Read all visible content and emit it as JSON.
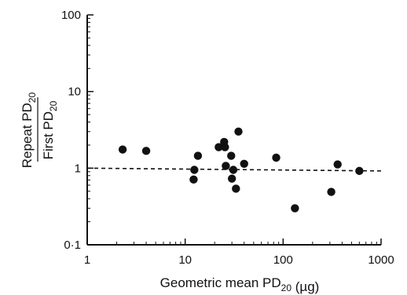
{
  "chart_data": {
    "type": "scatter",
    "title": "",
    "xlabel": "Geometric mean PD20 (µg)",
    "ylabel_top": "Repeat PD20",
    "ylabel_bottom": "First PD20",
    "x_scale": "log",
    "y_scale": "log",
    "xlim": [
      1,
      1000
    ],
    "ylim": [
      0.1,
      100
    ],
    "x_ticks": [
      1,
      10,
      100,
      1000
    ],
    "x_tick_labels": [
      "1",
      "10",
      "100",
      "1000"
    ],
    "y_ticks": [
      0.1,
      1,
      10,
      100
    ],
    "y_tick_labels": [
      "0·1",
      "1",
      "10",
      "100"
    ],
    "grid": false,
    "reference_line": {
      "style": "dashed",
      "y_start": 1.0,
      "y_end": 0.92
    },
    "points": [
      {
        "x": 2.3,
        "y": 1.75
      },
      {
        "x": 4.0,
        "y": 1.68
      },
      {
        "x": 12.2,
        "y": 0.71
      },
      {
        "x": 12.4,
        "y": 0.95
      },
      {
        "x": 13.5,
        "y": 1.45
      },
      {
        "x": 22,
        "y": 1.88
      },
      {
        "x": 25,
        "y": 2.2
      },
      {
        "x": 25.5,
        "y": 1.88
      },
      {
        "x": 26,
        "y": 1.07
      },
      {
        "x": 29.5,
        "y": 1.45
      },
      {
        "x": 30,
        "y": 0.73
      },
      {
        "x": 31,
        "y": 0.95
      },
      {
        "x": 33,
        "y": 0.54
      },
      {
        "x": 35,
        "y": 3.0
      },
      {
        "x": 40,
        "y": 1.14
      },
      {
        "x": 85,
        "y": 1.37
      },
      {
        "x": 132,
        "y": 0.3
      },
      {
        "x": 310,
        "y": 0.49
      },
      {
        "x": 360,
        "y": 1.12
      },
      {
        "x": 600,
        "y": 0.92
      }
    ]
  }
}
